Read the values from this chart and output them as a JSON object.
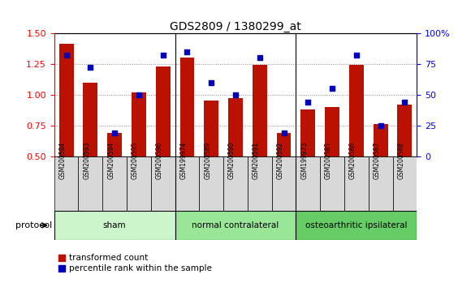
{
  "title": "GDS2809 / 1380299_at",
  "samples": [
    "GSM200584",
    "GSM200593",
    "GSM200594",
    "GSM200595",
    "GSM200596",
    "GSM199974",
    "GSM200589",
    "GSM200590",
    "GSM200591",
    "GSM200592",
    "GSM199973",
    "GSM200585",
    "GSM200586",
    "GSM200587",
    "GSM200588"
  ],
  "red_values": [
    1.41,
    1.1,
    0.69,
    1.02,
    1.23,
    1.3,
    0.95,
    0.97,
    1.24,
    0.69,
    0.88,
    0.9,
    1.24,
    0.76,
    0.92
  ],
  "blue_values": [
    82,
    72,
    19,
    50,
    82,
    85,
    60,
    50,
    80,
    19,
    44,
    55,
    82,
    25,
    44
  ],
  "ylim_left": [
    0.5,
    1.5
  ],
  "ylim_right": [
    0,
    100
  ],
  "yticks_left": [
    0.5,
    0.75,
    1.0,
    1.25,
    1.5
  ],
  "yticks_right": [
    0,
    25,
    50,
    75,
    100
  ],
  "ytick_labels_right": [
    "0",
    "25",
    "50",
    "75",
    "100%"
  ],
  "groups": [
    {
      "label": "sham",
      "start": 0,
      "end": 5,
      "color": "#ccf5cc"
    },
    {
      "label": "normal contralateral",
      "start": 5,
      "end": 10,
      "color": "#99e699"
    },
    {
      "label": "osteoarthritic ipsilateral",
      "start": 10,
      "end": 15,
      "color": "#66cc66"
    }
  ],
  "bar_color": "#bb1100",
  "dot_color": "#0000bb",
  "background_color": "#ffffff",
  "grid_color": "#888888",
  "tick_label_bg": "#d8d8d8",
  "legend_red": "transformed count",
  "legend_blue": "percentile rank within the sample",
  "protocol_label": "protocol"
}
